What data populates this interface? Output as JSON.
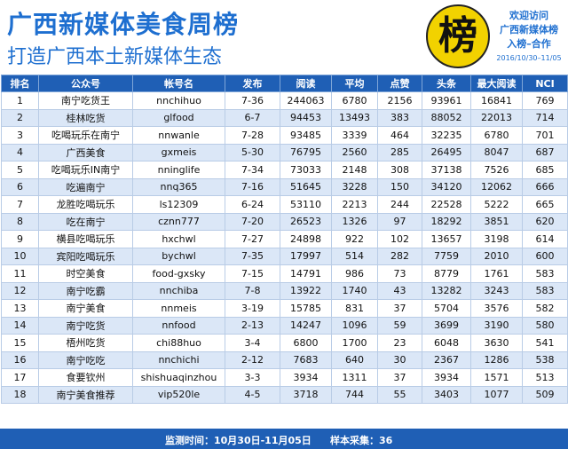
{
  "header": {
    "title": "广西新媒体美食周榜",
    "subtitle": "打造广西本土新媒体生态",
    "badge_char": "榜",
    "welcome_line1": "欢迎访问",
    "welcome_line2": "广西新媒体榜",
    "welcome_line3": "入榜–合作",
    "date_range": "2016/10/30–11/05"
  },
  "colors": {
    "accent": "#1e6fd0",
    "header_bg": "#1f5fb5",
    "row_alt": "#dbe7f7",
    "badge": "#f2d200"
  },
  "table": {
    "columns": [
      "排名",
      "公众号",
      "帐号名",
      "发布",
      "阅读",
      "平均",
      "点赞",
      "头条",
      "最大阅读",
      "NCI"
    ],
    "rows": [
      [
        "1",
        "南宁吃货王",
        "nnchihuo",
        "7-36",
        "244063",
        "6780",
        "2156",
        "93961",
        "16841",
        "769"
      ],
      [
        "2",
        "桂林吃货",
        "glfood",
        "6-7",
        "94453",
        "13493",
        "383",
        "88052",
        "22013",
        "714"
      ],
      [
        "3",
        "吃喝玩乐在南宁",
        "nnwanle",
        "7-28",
        "93485",
        "3339",
        "464",
        "32235",
        "6780",
        "701"
      ],
      [
        "4",
        "广西美食",
        "gxmeis",
        "5-30",
        "76795",
        "2560",
        "285",
        "26495",
        "8047",
        "687"
      ],
      [
        "5",
        "吃喝玩乐IN南宁",
        "nninglife",
        "7-34",
        "73033",
        "2148",
        "308",
        "37138",
        "7526",
        "685"
      ],
      [
        "6",
        "吃遍南宁",
        "nnq365",
        "7-16",
        "51645",
        "3228",
        "150",
        "34120",
        "12062",
        "666"
      ],
      [
        "7",
        "龙胜吃喝玩乐",
        "ls12309",
        "6-24",
        "53110",
        "2213",
        "244",
        "22528",
        "5222",
        "665"
      ],
      [
        "8",
        "吃在南宁",
        "cznn777",
        "7-20",
        "26523",
        "1326",
        "97",
        "18292",
        "3851",
        "620"
      ],
      [
        "9",
        "横县吃喝玩乐",
        "hxchwl",
        "7-27",
        "24898",
        "922",
        "102",
        "13657",
        "3198",
        "614"
      ],
      [
        "10",
        "宾阳吃喝玩乐",
        "bychwl",
        "7-35",
        "17997",
        "514",
        "282",
        "7759",
        "2010",
        "600"
      ],
      [
        "11",
        "时空美食",
        "food-gxsky",
        "7-15",
        "14791",
        "986",
        "73",
        "8779",
        "1761",
        "583"
      ],
      [
        "12",
        "南宁吃霸",
        "nnchiba",
        "7-8",
        "13922",
        "1740",
        "43",
        "13282",
        "3243",
        "583"
      ],
      [
        "13",
        "南宁美食",
        "nnmeis",
        "3-19",
        "15785",
        "831",
        "37",
        "5704",
        "3576",
        "582"
      ],
      [
        "14",
        "南宁吃货",
        "nnfood",
        "2-13",
        "14247",
        "1096",
        "59",
        "3699",
        "3190",
        "580"
      ],
      [
        "15",
        "梧州吃货",
        "chi88huo",
        "3-4",
        "6800",
        "1700",
        "23",
        "6048",
        "3630",
        "541"
      ],
      [
        "16",
        "南宁吃吃",
        "nnchichi",
        "2-12",
        "7683",
        "640",
        "30",
        "2367",
        "1286",
        "538"
      ],
      [
        "17",
        "食要钦州",
        "shishuaqinzhou",
        "3-3",
        "3934",
        "1311",
        "37",
        "3934",
        "1571",
        "513"
      ],
      [
        "18",
        "南宁美食推荐",
        "vip520le",
        "4-5",
        "3718",
        "744",
        "55",
        "3403",
        "1077",
        "509"
      ]
    ]
  },
  "footer": {
    "monitor": "监测时间：10月30日-11月05日",
    "sample": "样本采集：36"
  }
}
